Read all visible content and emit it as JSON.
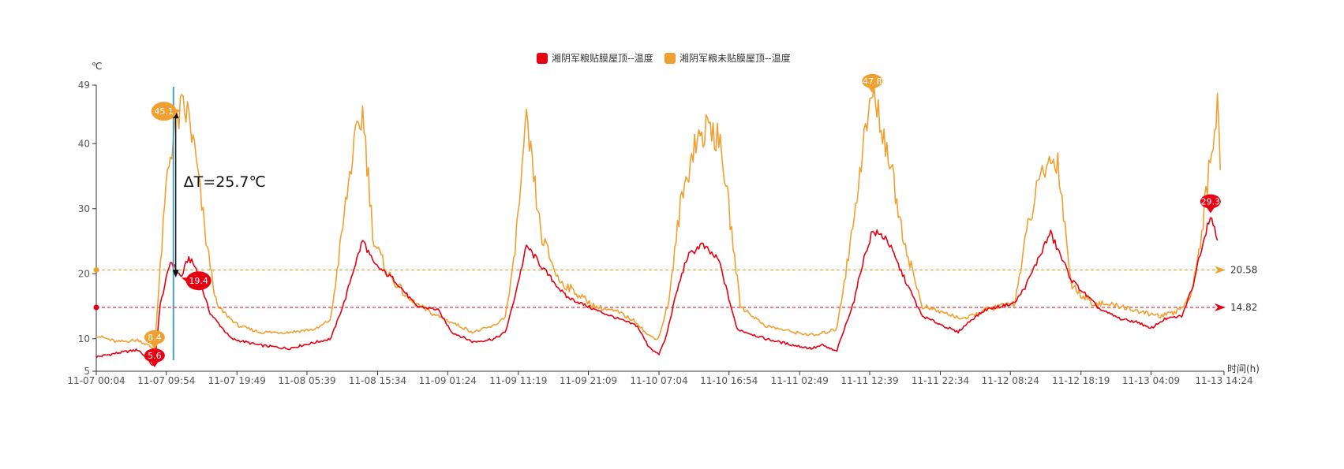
{
  "chart_data": {
    "type": "line",
    "y_unit": "℃",
    "x_unit": "时间(h)",
    "ylim": [
      5,
      49
    ],
    "y_ticks": [
      5,
      10,
      20,
      30,
      40,
      49
    ],
    "x_start": "11-07 00:04",
    "x_end": "11-13 14:24",
    "x_tick_labels": [
      "11-07 00:04",
      "11-07 09:54",
      "11-07 19:49",
      "11-08 05:39",
      "11-08 15:34",
      "11-09 01:24",
      "11-09 11:19",
      "11-09 21:09",
      "11-10 07:04",
      "11-10 16:54",
      "11-11 02:49",
      "11-11 12:39",
      "11-11 22:34",
      "11-12 08:24",
      "11-12 18:19",
      "11-13 04:09",
      "11-13 14:24"
    ],
    "grid": false,
    "legend": "top-center",
    "series": [
      {
        "name": "湘阴军粮贴膜屋顶--温度",
        "color": "#e60012",
        "x": [
          "11-07 00:04",
          "11-07 03:00",
          "11-07 06:00",
          "11-07 08:15",
          "11-07 09:00",
          "11-07 10:30",
          "11-07 12:00",
          "11-07 13:00",
          "11-07 14:00",
          "11-07 16:00",
          "11-07 19:00",
          "11-07 23:00",
          "11-08 03:00",
          "11-08 07:00",
          "11-08 09:00",
          "11-08 11:00",
          "11-08 12:00",
          "11-08 13:30",
          "11-08 15:00",
          "11-08 18:00",
          "11-08 21:00",
          "11-09 00:00",
          "11-09 02:00",
          "11-09 05:00",
          "11-09 08:00",
          "11-09 09:30",
          "11-09 10:30",
          "11-09 12:30",
          "11-09 15:00",
          "11-09 18:00",
          "11-09 22:00",
          "11-10 01:30",
          "11-10 04:00",
          "11-10 05:30",
          "11-10 07:00",
          "11-10 08:00",
          "11-10 09:30",
          "11-10 11:00",
          "11-10 13:00",
          "11-10 15:30",
          "11-10 18:00",
          "11-10 22:00",
          "11-11 02:00",
          "11-11 04:30",
          "11-11 06:00",
          "11-11 08:00",
          "11-11 10:30",
          "11-11 11:30",
          "11-11 13:00",
          "11-11 15:00",
          "11-11 17:00",
          "11-11 20:00",
          "11-11 23:00",
          "11-12 01:00",
          "11-12 03:00",
          "11-12 05:00",
          "11-12 07:00",
          "11-12 09:00",
          "11-12 10:30",
          "11-12 12:00",
          "11-12 14:00",
          "11-12 17:00",
          "11-12 21:00",
          "11-13 00:00",
          "11-13 02:30",
          "11-13 04:00",
          "11-13 06:00",
          "11-13 08:30",
          "11-13 10:00",
          "11-13 11:00",
          "11-13 12:30",
          "11-13 13:30"
        ],
        "values": [
          7.2,
          7.8,
          8.3,
          5.6,
          15.0,
          22.0,
          19.4,
          22.5,
          21.0,
          14.0,
          10.0,
          9.0,
          8.5,
          9.5,
          10.0,
          16.0,
          20.0,
          25.2,
          21.5,
          19.0,
          15.0,
          14.5,
          11.0,
          9.5,
          10.0,
          11.0,
          15.0,
          24.3,
          20.5,
          16.5,
          14.5,
          13.0,
          12.0,
          9.0,
          7.5,
          10.0,
          17.0,
          22.5,
          24.5,
          22.0,
          11.5,
          10.0,
          9.0,
          8.5,
          9.0,
          8.0,
          16.0,
          21.0,
          26.5,
          25.5,
          20.5,
          13.5,
          12.0,
          11.0,
          13.0,
          14.5,
          15.0,
          15.5,
          18.0,
          21.5,
          26.3,
          19.0,
          14.5,
          13.0,
          12.5,
          11.5,
          13.0,
          13.5,
          18.0,
          23.0,
          29.3,
          25.0
        ],
        "markers": [
          {
            "label": "5.6",
            "x": "11-07 08:15",
            "y": 5.6
          },
          {
            "label": "19.4",
            "x": "11-07 12:00",
            "y": 19.4
          },
          {
            "label": "29.3",
            "x": "11-13 12:30",
            "y": 29.3
          }
        ]
      },
      {
        "name": "湘阴军粮未贴膜屋顶--温度",
        "color": "#f0a030",
        "x": [
          "11-07 00:04",
          "11-07 03:00",
          "11-07 06:00",
          "11-07 08:15",
          "11-07 09:00",
          "11-07 10:00",
          "11-07 11:00",
          "11-07 12:00",
          "11-07 13:00",
          "11-07 14:00",
          "11-07 15:30",
          "11-07 17:00",
          "11-07 20:00",
          "11-07 23:00",
          "11-08 03:00",
          "11-08 07:00",
          "11-08 09:00",
          "11-08 11:00",
          "11-08 12:00",
          "11-08 13:30",
          "11-08 15:00",
          "11-08 17:00",
          "11-08 20:00",
          "11-08 23:00",
          "11-09 02:00",
          "11-09 05:00",
          "11-09 08:00",
          "11-09 09:30",
          "11-09 10:30",
          "11-09 12:30",
          "11-09 14:30",
          "11-09 17:00",
          "11-09 22:00",
          "11-10 01:30",
          "11-10 04:00",
          "11-10 05:30",
          "11-10 07:00",
          "11-10 08:30",
          "11-10 10:00",
          "11-10 12:00",
          "11-10 14:30",
          "11-10 16:00",
          "11-10 18:30",
          "11-10 22:00",
          "11-11 02:00",
          "11-11 05:00",
          "11-11 08:00",
          "11-11 10:00",
          "11-11 11:30",
          "11-11 13:00",
          "11-11 15:00",
          "11-11 17:30",
          "11-11 20:00",
          "11-11 23:00",
          "11-12 02:00",
          "11-12 05:00",
          "11-12 07:00",
          "11-12 09:00",
          "11-12 11:00",
          "11-12 13:00",
          "11-12 15:00",
          "11-12 17:00",
          "11-12 20:00",
          "11-13 00:00",
          "11-13 03:00",
          "11-13 05:30",
          "11-13 07:30",
          "11-13 09:30",
          "11-13 11:00",
          "11-13 12:30",
          "11-13 13:30",
          "11-13 14:00"
        ],
        "values": [
          10.5,
          9.5,
          9.8,
          8.4,
          20.0,
          35.0,
          42.0,
          45.1,
          44.5,
          38.0,
          25.0,
          15.0,
          12.0,
          11.0,
          11.0,
          11.5,
          13.0,
          30.0,
          38.0,
          45.0,
          25.0,
          20.0,
          16.0,
          14.0,
          12.5,
          11.0,
          12.0,
          13.5,
          20.0,
          43.0,
          26.0,
          19.0,
          15.0,
          14.0,
          12.5,
          10.5,
          10.0,
          16.0,
          30.0,
          40.0,
          43.0,
          38.0,
          15.0,
          12.0,
          11.0,
          10.5,
          11.5,
          25.0,
          38.0,
          47.8,
          40.0,
          25.0,
          15.0,
          14.0,
          13.0,
          14.5,
          15.0,
          15.5,
          28.0,
          36.0,
          38.0,
          18.0,
          15.5,
          15.0,
          14.0,
          13.5,
          14.0,
          16.0,
          24.0,
          38.0,
          46.0,
          35.5
        ],
        "markers": [
          {
            "label": "8.4",
            "x": "11-07 08:15",
            "y": 8.4
          },
          {
            "label": "45.1",
            "x": "11-07 12:00",
            "y": 45.1
          },
          {
            "label": "47.8",
            "x": "11-11 13:00",
            "y": 47.8
          }
        ]
      }
    ],
    "reference_lines": [
      {
        "label": "20.58",
        "value": 20.58,
        "color": "#f0a030",
        "series": "湘阴军粮未贴膜屋顶--温度"
      },
      {
        "label": "14.82",
        "value": 14.82,
        "color": "#e60012",
        "series": "湘阴军粮贴膜屋顶--温度"
      }
    ],
    "vertical_marker": {
      "x": "11-07 10:54",
      "color": "#4aa0c8"
    },
    "annotation": {
      "text": "ΔT=25.7℃",
      "x": "11-07 11:00",
      "y_top": 45.1,
      "y_bottom": 19.4
    }
  }
}
